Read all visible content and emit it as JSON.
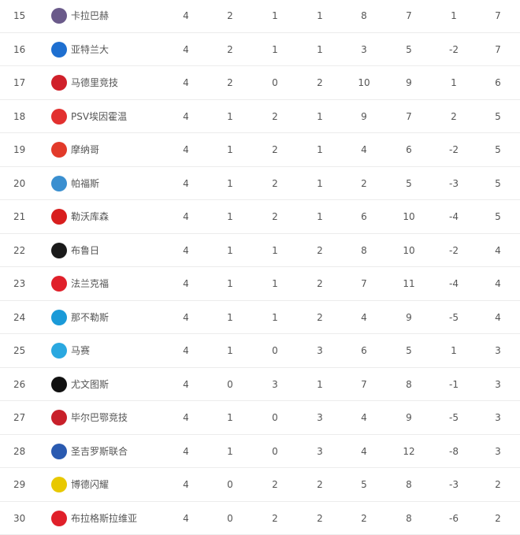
{
  "standings": [
    {
      "rank": "15",
      "team": "卡拉巴赫",
      "logo": {
        "icon": "qarabag-crest-icon",
        "color": "#6a5a8a"
      },
      "played": "4",
      "won": "2",
      "drawn": "1",
      "lost": "1",
      "gf": "8",
      "ga": "7",
      "gd": "1",
      "pts": "7"
    },
    {
      "rank": "16",
      "team": "亚特兰大",
      "logo": {
        "icon": "atalanta-crest-icon",
        "color": "#1e6fd0"
      },
      "played": "4",
      "won": "2",
      "drawn": "1",
      "lost": "1",
      "gf": "3",
      "ga": "5",
      "gd": "-2",
      "pts": "7"
    },
    {
      "rank": "17",
      "team": "马德里竞技",
      "logo": {
        "icon": "atletico-madrid-crest-icon",
        "color": "#d0202a"
      },
      "played": "4",
      "won": "2",
      "drawn": "0",
      "lost": "2",
      "gf": "10",
      "ga": "9",
      "gd": "1",
      "pts": "6"
    },
    {
      "rank": "18",
      "team": "PSV埃因霍温",
      "logo": {
        "icon": "psv-crest-icon",
        "color": "#e2302f"
      },
      "played": "4",
      "won": "1",
      "drawn": "2",
      "lost": "1",
      "gf": "9",
      "ga": "7",
      "gd": "2",
      "pts": "5"
    },
    {
      "rank": "19",
      "team": "摩纳哥",
      "logo": {
        "icon": "monaco-crest-icon",
        "color": "#e23a2a"
      },
      "played": "4",
      "won": "1",
      "drawn": "2",
      "lost": "1",
      "gf": "4",
      "ga": "6",
      "gd": "-2",
      "pts": "5"
    },
    {
      "rank": "20",
      "team": "帕福斯",
      "logo": {
        "icon": "pafos-crest-icon",
        "color": "#3a8fd0"
      },
      "played": "4",
      "won": "1",
      "drawn": "2",
      "lost": "1",
      "gf": "2",
      "ga": "5",
      "gd": "-3",
      "pts": "5"
    },
    {
      "rank": "21",
      "team": "勒沃库森",
      "logo": {
        "icon": "leverkusen-crest-icon",
        "color": "#d81e1e"
      },
      "played": "4",
      "won": "1",
      "drawn": "2",
      "lost": "1",
      "gf": "6",
      "ga": "10",
      "gd": "-4",
      "pts": "5"
    },
    {
      "rank": "22",
      "team": "布鲁日",
      "logo": {
        "icon": "club-brugge-crest-icon",
        "color": "#1a1a1a"
      },
      "played": "4",
      "won": "1",
      "drawn": "1",
      "lost": "2",
      "gf": "8",
      "ga": "10",
      "gd": "-2",
      "pts": "4"
    },
    {
      "rank": "23",
      "team": "法兰克福",
      "logo": {
        "icon": "eintracht-frankfurt-crest-icon",
        "color": "#e0202a"
      },
      "played": "4",
      "won": "1",
      "drawn": "1",
      "lost": "2",
      "gf": "7",
      "ga": "11",
      "gd": "-4",
      "pts": "4"
    },
    {
      "rank": "24",
      "team": "那不勒斯",
      "logo": {
        "icon": "napoli-crest-icon",
        "color": "#1a9ad8"
      },
      "played": "4",
      "won": "1",
      "drawn": "1",
      "lost": "2",
      "gf": "4",
      "ga": "9",
      "gd": "-5",
      "pts": "4"
    },
    {
      "rank": "25",
      "team": "马赛",
      "logo": {
        "icon": "marseille-crest-icon",
        "color": "#2aa8e0"
      },
      "played": "4",
      "won": "1",
      "drawn": "0",
      "lost": "3",
      "gf": "6",
      "ga": "5",
      "gd": "1",
      "pts": "3"
    },
    {
      "rank": "26",
      "team": "尤文图斯",
      "logo": {
        "icon": "juventus-crest-icon",
        "color": "#111111"
      },
      "played": "4",
      "won": "0",
      "drawn": "3",
      "lost": "1",
      "gf": "7",
      "ga": "8",
      "gd": "-1",
      "pts": "3"
    },
    {
      "rank": "27",
      "team": "毕尔巴鄂竞技",
      "logo": {
        "icon": "athletic-bilbao-crest-icon",
        "color": "#c8202a"
      },
      "played": "4",
      "won": "1",
      "drawn": "0",
      "lost": "3",
      "gf": "4",
      "ga": "9",
      "gd": "-5",
      "pts": "3"
    },
    {
      "rank": "28",
      "team": "圣吉罗斯联合",
      "logo": {
        "icon": "union-saint-gilloise-crest-icon",
        "color": "#2a5ab0"
      },
      "played": "4",
      "won": "1",
      "drawn": "0",
      "lost": "3",
      "gf": "4",
      "ga": "12",
      "gd": "-8",
      "pts": "3"
    },
    {
      "rank": "29",
      "team": "博德闪耀",
      "logo": {
        "icon": "bodo-glimt-crest-icon",
        "color": "#e8c800"
      },
      "played": "4",
      "won": "0",
      "drawn": "2",
      "lost": "2",
      "gf": "5",
      "ga": "8",
      "gd": "-3",
      "pts": "2"
    },
    {
      "rank": "30",
      "team": "布拉格斯拉维亚",
      "logo": {
        "icon": "slavia-prague-crest-icon",
        "color": "#e0202a"
      },
      "played": "4",
      "won": "0",
      "drawn": "2",
      "lost": "2",
      "gf": "2",
      "ga": "8",
      "gd": "-6",
      "pts": "2"
    }
  ]
}
